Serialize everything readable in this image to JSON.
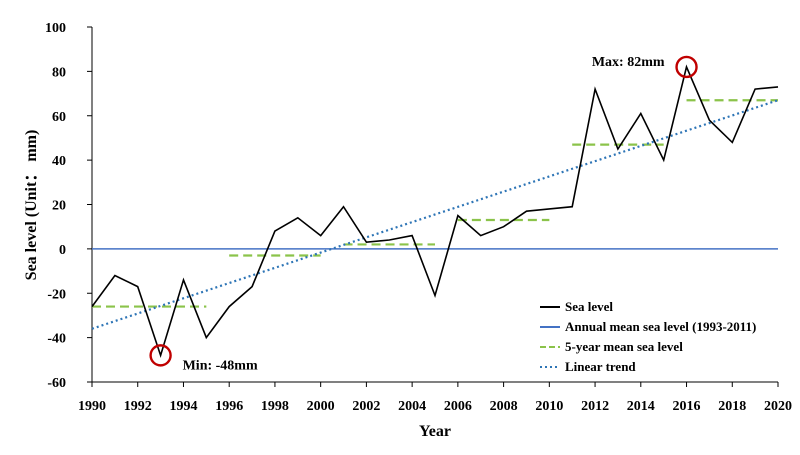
{
  "chart_data": {
    "type": "line",
    "title": "",
    "xlabel": "Year",
    "ylabel": "Sea level (Unit： mm)",
    "xlim": [
      1990,
      2020
    ],
    "ylim": [
      -60,
      100
    ],
    "x_ticks": [
      1990,
      1992,
      1994,
      1996,
      1998,
      2000,
      2002,
      2004,
      2006,
      2008,
      2010,
      2012,
      2014,
      2016,
      2018,
      2020
    ],
    "y_ticks": [
      -60,
      -40,
      -20,
      0,
      20,
      40,
      60,
      80,
      100
    ],
    "grid": false,
    "legend_position": "bottom-right",
    "series": [
      {
        "name": "Sea level",
        "kind": "line",
        "color": "#000000",
        "x": [
          1990,
          1991,
          1992,
          1993,
          1994,
          1995,
          1996,
          1997,
          1998,
          1999,
          2000,
          2001,
          2002,
          2003,
          2004,
          2005,
          2006,
          2007,
          2008,
          2009,
          2010,
          2011,
          2012,
          2013,
          2014,
          2015,
          2016,
          2017,
          2018,
          2019,
          2020
        ],
        "y": [
          -26,
          -12,
          -17,
          -48,
          -14,
          -40,
          -26,
          -17,
          8,
          14,
          6,
          19,
          3,
          4,
          6,
          -21,
          15,
          6,
          10,
          17,
          18,
          19,
          72,
          45,
          61,
          40,
          82,
          58,
          48,
          72,
          73
        ]
      },
      {
        "name": "Annual mean sea level (1993-2011)",
        "kind": "hline",
        "color": "#4472c4",
        "y": 0
      },
      {
        "name": "5-year mean sea level",
        "kind": "segments",
        "color": "#8bc34a",
        "segments": [
          {
            "x0": 1990,
            "x1": 1995,
            "y": -26
          },
          {
            "x0": 1996,
            "x1": 2000,
            "y": -3
          },
          {
            "x0": 2001,
            "x1": 2005,
            "y": 2
          },
          {
            "x0": 2006,
            "x1": 2010,
            "y": 13
          },
          {
            "x0": 2011,
            "x1": 2015,
            "y": 47
          },
          {
            "x0": 2016,
            "x1": 2020,
            "y": 67
          }
        ]
      },
      {
        "name": "Linear trend",
        "kind": "trend",
        "color": "#2e75b6",
        "x": [
          1990,
          2020
        ],
        "y": [
          -36,
          67
        ]
      }
    ],
    "annotations": [
      {
        "text": "Min: -48mm",
        "x": 1993,
        "y": -48,
        "label_side": "right-below"
      },
      {
        "text": "Max: 82mm",
        "x": 2016,
        "y": 82,
        "label_side": "left"
      }
    ],
    "colors": {
      "axis": "#000000",
      "marker_circle": "#c00000"
    }
  }
}
